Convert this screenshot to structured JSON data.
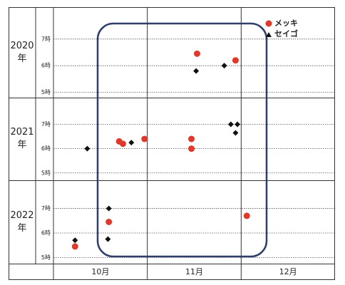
{
  "chart_data": [
    {
      "type": "scatter",
      "title": "2020\n年",
      "xlim": [
        9.5,
        12.5
      ],
      "ylim": [
        4.8,
        8.2
      ],
      "yticks": [
        {
          "value": 5,
          "label": "5時"
        },
        {
          "value": 6,
          "label": "6時"
        },
        {
          "value": 7,
          "label": "7時"
        }
      ],
      "series": [
        {
          "name": "メッキ",
          "color": "#e0392b",
          "x": [
            11.03,
            11.44
          ],
          "values": [
            6.45,
            6.2
          ]
        },
        {
          "name": "セイゴ",
          "color": "#111111",
          "x": [
            11.02,
            11.32
          ],
          "values": [
            5.8,
            6.0
          ]
        }
      ]
    },
    {
      "type": "scatter",
      "title": "2021\n年",
      "xlim": [
        9.5,
        12.5
      ],
      "ylim": [
        4.7,
        8.1
      ],
      "yticks": [
        {
          "value": 5,
          "label": "5時"
        },
        {
          "value": 6,
          "label": "6時"
        },
        {
          "value": 7,
          "label": "7時"
        }
      ],
      "series": [
        {
          "color": "#e0392b",
          "x": [
            10.2,
            10.24,
            10.47,
            10.97,
            10.97
          ],
          "values": [
            6.3,
            6.2,
            6.4,
            6.4,
            6.0
          ]
        },
        {
          "color": "#111111",
          "x": [
            9.86,
            10.33,
            11.39,
            11.46,
            11.44
          ],
          "values": [
            6.0,
            6.25,
            7.0,
            7.0,
            6.65
          ]
        }
      ]
    },
    {
      "type": "scatter",
      "title": "2022\n年",
      "xlim": [
        9.5,
        12.5
      ],
      "ylim": [
        4.75,
        8.15
      ],
      "xticks": [
        {
          "value": 10,
          "label": "10月"
        },
        {
          "value": 11,
          "label": "11月"
        },
        {
          "value": 12,
          "label": "12月"
        }
      ],
      "yticks": [
        {
          "value": 5,
          "label": "5時"
        },
        {
          "value": 6,
          "label": "6時"
        },
        {
          "value": 7,
          "label": "7時"
        }
      ],
      "series": [
        {
          "color": "#e0392b",
          "x": [
            9.73,
            10.09,
            11.56
          ],
          "values": [
            5.45,
            6.45,
            6.7
          ]
        },
        {
          "color": "#111111",
          "x": [
            9.73,
            10.09,
            10.08
          ],
          "values": [
            5.7,
            7.0,
            5.75
          ]
        }
      ]
    }
  ]
}
